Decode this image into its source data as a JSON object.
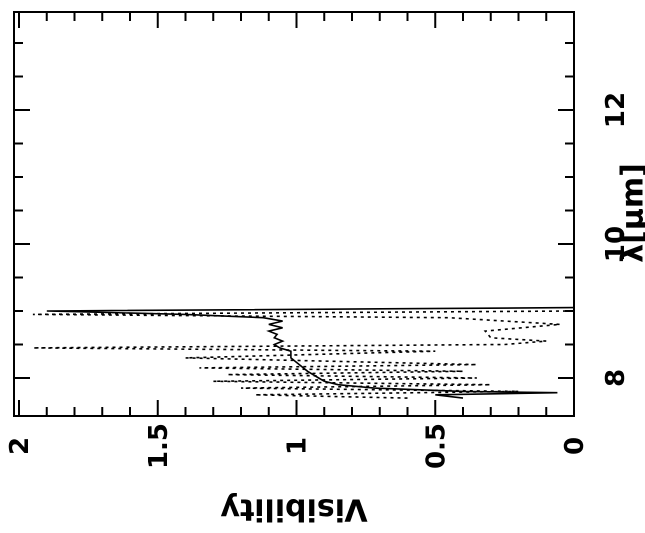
{
  "chart_data": {
    "type": "line",
    "orientation": "rotated-90",
    "xlabel": "λ[μm]",
    "ylabel": "Visibility",
    "xlim": [
      7.7,
      14
    ],
    "ylim": [
      0,
      2
    ],
    "x_ticks": [
      8,
      10,
      12
    ],
    "x_tick_labels": [
      "8",
      "10",
      "12"
    ],
    "y_ticks": [
      0,
      0.5,
      1,
      1.5,
      2
    ],
    "y_tick_labels": [
      "0",
      "0.5",
      "1",
      "1.5",
      "2"
    ],
    "grid": false,
    "legend": "none",
    "series": [
      {
        "style": "solid",
        "color": "#000000",
        "points": [
          [
            7.7,
            0.4
          ],
          [
            7.75,
            0.5
          ],
          [
            7.78,
            0.06
          ],
          [
            7.8,
            0.4
          ],
          [
            7.85,
            0.72
          ],
          [
            7.9,
            0.85
          ],
          [
            7.95,
            0.9
          ],
          [
            8.0,
            0.92
          ],
          [
            8.1,
            0.96
          ],
          [
            8.2,
            0.99
          ],
          [
            8.3,
            1.02
          ],
          [
            8.4,
            1.02
          ],
          [
            8.45,
            1.06
          ],
          [
            8.5,
            1.08
          ],
          [
            8.55,
            1.05
          ],
          [
            8.6,
            1.08
          ],
          [
            8.65,
            1.07
          ],
          [
            8.7,
            1.1
          ],
          [
            8.75,
            1.05
          ],
          [
            8.8,
            1.1
          ],
          [
            8.85,
            1.05
          ],
          [
            8.9,
            1.12
          ],
          [
            8.95,
            1.4
          ],
          [
            9.0,
            1.9
          ],
          [
            9.05,
            0.0
          ]
        ]
      },
      {
        "style": "dashed",
        "color": "#000000",
        "points": [
          [
            7.7,
            0.6
          ],
          [
            7.75,
            1.15
          ],
          [
            7.8,
            0.2
          ],
          [
            7.85,
            1.2
          ],
          [
            7.9,
            0.3
          ],
          [
            7.95,
            1.3
          ],
          [
            8.0,
            0.35
          ],
          [
            8.05,
            1.25
          ],
          [
            8.1,
            0.4
          ],
          [
            8.15,
            1.35
          ],
          [
            8.2,
            0.35
          ],
          [
            8.3,
            1.4
          ],
          [
            8.4,
            0.5
          ],
          [
            8.45,
            1.95
          ],
          [
            8.5,
            0.25
          ],
          [
            8.55,
            0.1
          ],
          [
            8.6,
            0.3
          ],
          [
            8.7,
            0.32
          ],
          [
            8.8,
            0.05
          ],
          [
            8.9,
            0.45
          ],
          [
            8.95,
            1.95
          ],
          [
            9.0,
            0.0
          ],
          [
            9.05,
            0.0
          ]
        ]
      }
    ]
  }
}
